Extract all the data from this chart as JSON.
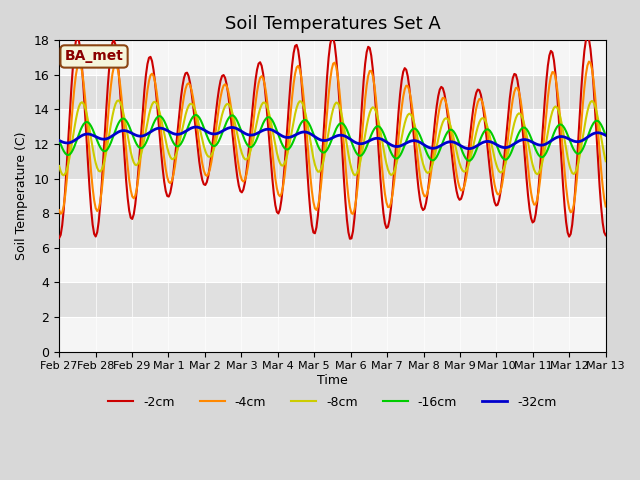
{
  "title": "Soil Temperatures Set A",
  "xlabel": "Time",
  "ylabel": "Soil Temperature (C)",
  "ylim": [
    0,
    18
  ],
  "yticks": [
    0,
    2,
    4,
    6,
    8,
    10,
    12,
    14,
    16,
    18
  ],
  "xtick_labels": [
    "Feb 27",
    "Feb 28",
    "Feb 29",
    "Mar 1",
    "Mar 2",
    "Mar 3",
    "Mar 4",
    "Mar 5",
    "Mar 6",
    "Mar 7",
    "Mar 8",
    "Mar 9",
    "Mar 10",
    "Mar 11",
    "Mar 12",
    "Mar 13"
  ],
  "line_colors": [
    "#cc0000",
    "#ff8800",
    "#cccc00",
    "#00cc00",
    "#0000cc"
  ],
  "line_labels": [
    "-2cm",
    "-4cm",
    "-8cm",
    "-16cm",
    "-32cm"
  ],
  "legend_location": "lower center",
  "annotation_text": "BA_met",
  "bg_color": "#e8e8e8",
  "plot_bg_color": "#f0f0f0",
  "n_days": 15,
  "pts_per_day": 24
}
